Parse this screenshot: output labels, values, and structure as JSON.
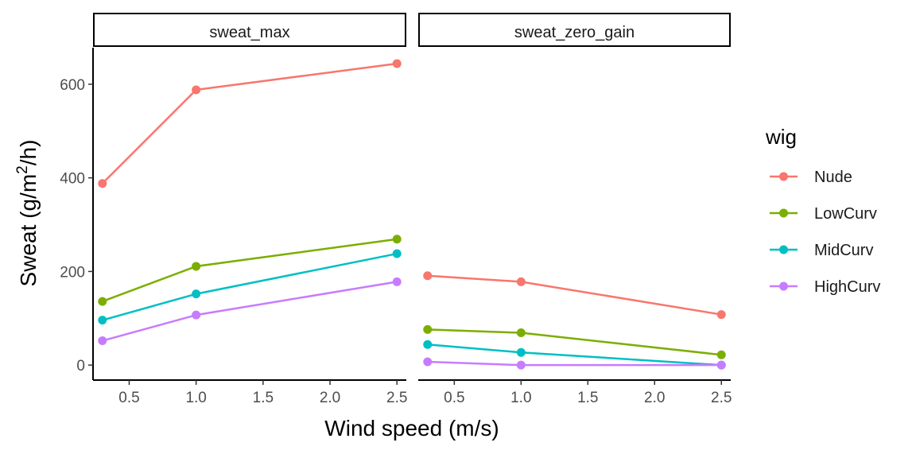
{
  "chart_data": {
    "type": "line",
    "xlabel": "Wind speed (m/s)",
    "ylabel_prefix": "Sweat (g/m",
    "ylabel_sup": "2",
    "ylabel_suffix": "/h)",
    "x_ticks": [
      0.5,
      1.0,
      1.5,
      2.0,
      2.5
    ],
    "x_tick_labels": [
      "0.5",
      "1.0",
      "1.5",
      "2.0",
      "2.5"
    ],
    "y_ticks": [
      0,
      200,
      400,
      600
    ],
    "y_tick_labels": [
      "0",
      "200",
      "400",
      "600"
    ],
    "xlim": [
      0.23,
      2.57
    ],
    "ylim": [
      -32,
      678
    ],
    "legend": {
      "title": "wig",
      "position": "right",
      "entries": [
        "Nude",
        "LowCurv",
        "MidCurv",
        "HighCurv"
      ]
    },
    "colors": {
      "Nude": "#F8766D",
      "LowCurv": "#7CAE00",
      "MidCurv": "#00BFC4",
      "HighCurv": "#C77CFF"
    },
    "x": [
      0.3,
      1.0,
      2.5
    ],
    "panels": [
      {
        "label": "sweat_max",
        "series": [
          {
            "name": "Nude",
            "values": [
              388,
              588,
              644
            ]
          },
          {
            "name": "LowCurv",
            "values": [
              136,
              211,
              269
            ]
          },
          {
            "name": "MidCurv",
            "values": [
              96,
              152,
              238
            ]
          },
          {
            "name": "HighCurv",
            "values": [
              52,
              107,
              178
            ]
          }
        ]
      },
      {
        "label": "sweat_zero_gain",
        "series": [
          {
            "name": "Nude",
            "values": [
              191,
              178,
              108
            ]
          },
          {
            "name": "LowCurv",
            "values": [
              76,
              69,
              22
            ]
          },
          {
            "name": "MidCurv",
            "values": [
              44,
              27,
              0
            ]
          },
          {
            "name": "HighCurv",
            "values": [
              7,
              0,
              0
            ]
          }
        ]
      }
    ]
  }
}
